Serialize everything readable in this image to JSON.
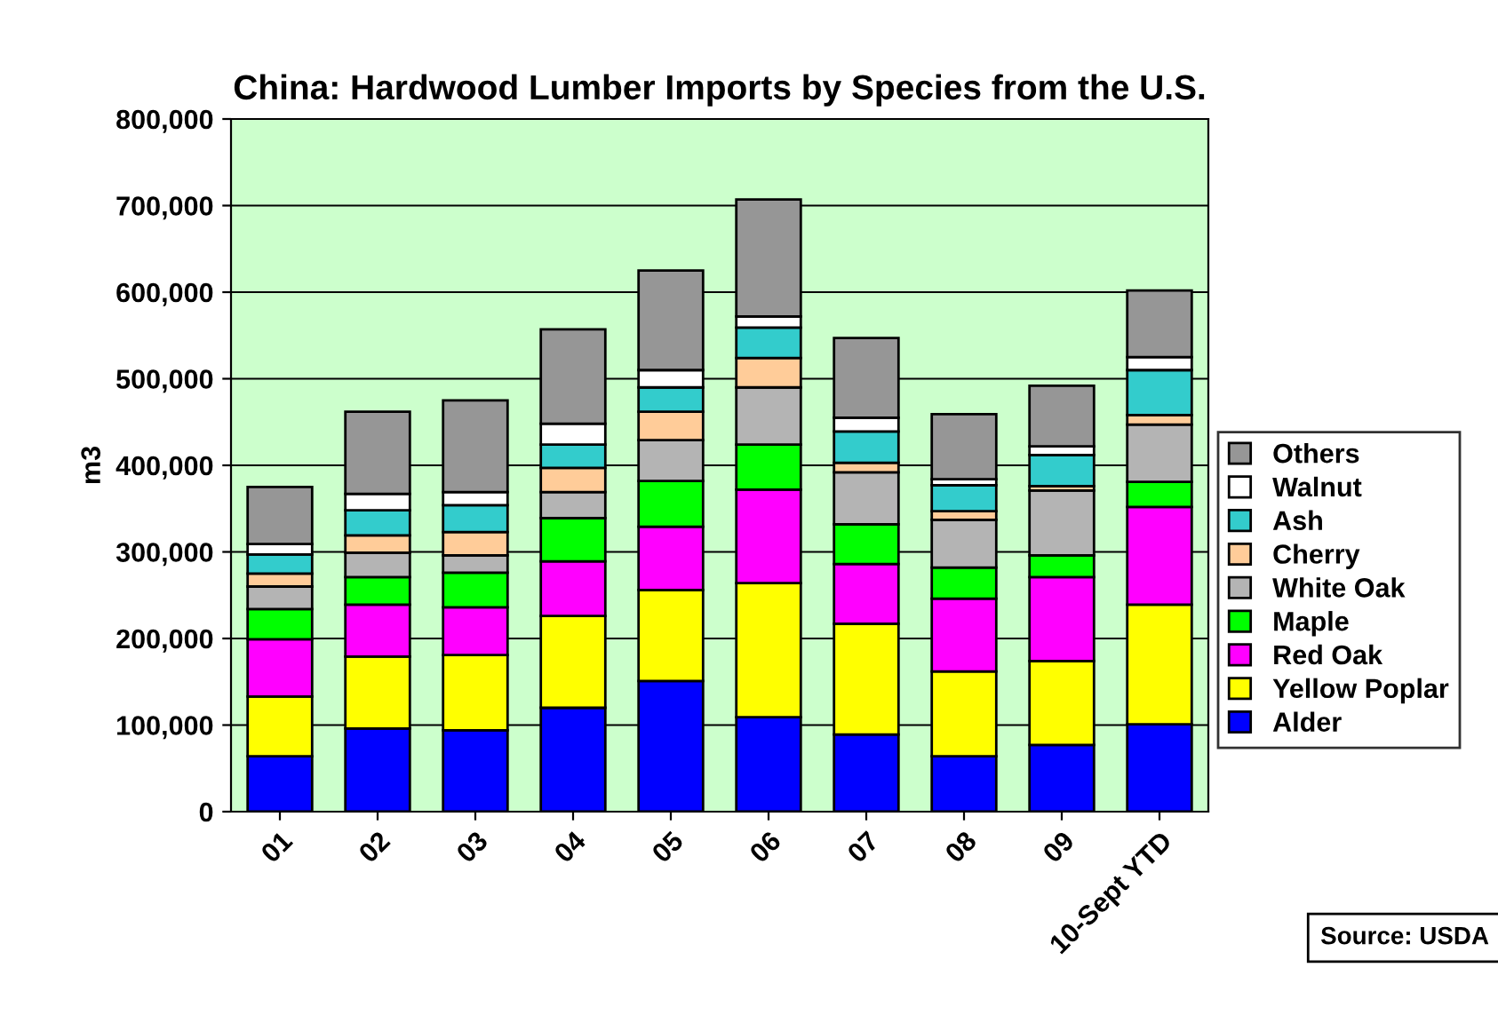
{
  "chart_data": {
    "type": "bar",
    "stacked": true,
    "title": "China: Hardwood Lumber Imports by Species from the U.S.",
    "ylabel": "m3",
    "categories": [
      "01",
      "02",
      "03",
      "04",
      "05",
      "06",
      "07",
      "08",
      "09",
      "10-Sept YTD"
    ],
    "series": [
      {
        "name": "Alder",
        "color": "#0000ff",
        "values": [
          64000,
          96000,
          94000,
          120000,
          151000,
          109000,
          89000,
          64000,
          77000,
          101000
        ]
      },
      {
        "name": "Yellow Poplar",
        "color": "#ffff00",
        "values": [
          69000,
          83000,
          87000,
          106000,
          105000,
          155000,
          128000,
          98000,
          97000,
          138000
        ]
      },
      {
        "name": "Red Oak",
        "color": "#ff00ff",
        "values": [
          66000,
          60000,
          55000,
          63000,
          73000,
          108000,
          69000,
          84000,
          97000,
          113000
        ]
      },
      {
        "name": "Maple",
        "color": "#00ff00",
        "values": [
          35000,
          32000,
          40000,
          50000,
          53000,
          52000,
          46000,
          36000,
          25000,
          29000
        ]
      },
      {
        "name": "White Oak",
        "color": "#b4b4b4",
        "values": [
          26000,
          28000,
          20000,
          30000,
          47000,
          66000,
          60000,
          55000,
          75000,
          66000
        ]
      },
      {
        "name": "Cherry",
        "color": "#ffcc99",
        "values": [
          15000,
          20000,
          27000,
          28000,
          33000,
          34000,
          11000,
          10000,
          5000,
          11000
        ]
      },
      {
        "name": "Ash",
        "color": "#33cccc",
        "values": [
          22000,
          29000,
          31000,
          27000,
          28000,
          35000,
          36000,
          30000,
          36000,
          52000
        ]
      },
      {
        "name": "Walnut",
        "color": "#ffffff",
        "values": [
          12000,
          19000,
          15000,
          24000,
          20000,
          13000,
          16000,
          7000,
          10000,
          15000
        ]
      },
      {
        "name": "Others",
        "color": "#969696",
        "values": [
          66000,
          95000,
          106000,
          109000,
          115000,
          135000,
          92000,
          75000,
          70000,
          77000
        ]
      }
    ],
    "ylim": [
      0,
      800000
    ],
    "yticks": [
      {
        "value": 0,
        "label": "0"
      },
      {
        "value": 100000,
        "label": "100,000"
      },
      {
        "value": 200000,
        "label": "200,000"
      },
      {
        "value": 300000,
        "label": "300,000"
      },
      {
        "value": 400000,
        "label": "400,000"
      },
      {
        "value": 500000,
        "label": "500,000"
      },
      {
        "value": 600000,
        "label": "600,000"
      },
      {
        "value": 700000,
        "label": "700,000"
      },
      {
        "value": 800000,
        "label": "800,000"
      }
    ],
    "grid": "y",
    "legend": "right",
    "annotations": [
      "Source: USDA"
    ]
  }
}
